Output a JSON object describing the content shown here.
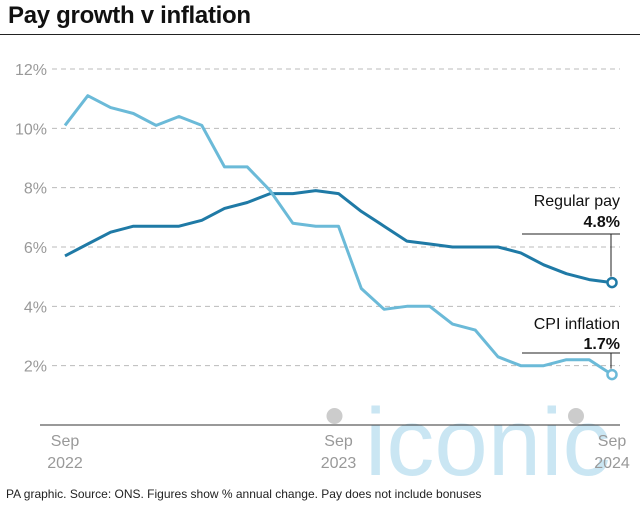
{
  "header": {
    "title": "Pay growth v inflation"
  },
  "footer": {
    "note": "PA graphic. Source: ONS. Figures show % annual change. Pay does not include bonuses"
  },
  "watermark": {
    "text": "iconic"
  },
  "colors": {
    "regular_pay": "#1f7aa6",
    "cpi": "#6bbad8",
    "grid": "#bbbbbb",
    "axis_text": "#999999"
  },
  "chart_data": {
    "type": "line",
    "title": "Pay growth v inflation",
    "xlabel": "",
    "ylabel": "",
    "x_ticks": [
      {
        "month": 0,
        "line1": "Sep",
        "line2": "2022"
      },
      {
        "month": 12,
        "line1": "Sep",
        "line2": "2023"
      },
      {
        "month": 24,
        "line1": "Sep",
        "line2": "2024"
      }
    ],
    "y_ticks": [
      "2%",
      "4%",
      "6%",
      "8%",
      "10%",
      "12%"
    ],
    "y_tick_values": [
      2,
      4,
      6,
      8,
      10,
      12
    ],
    "ylim": [
      0,
      12
    ],
    "xlim": [
      "2022-09",
      "2024-09"
    ],
    "grid": true,
    "x": [
      "2022-09",
      "2022-10",
      "2022-11",
      "2022-12",
      "2023-01",
      "2023-02",
      "2023-03",
      "2023-04",
      "2023-05",
      "2023-06",
      "2023-07",
      "2023-08",
      "2023-09",
      "2023-10",
      "2023-11",
      "2023-12",
      "2024-01",
      "2024-02",
      "2024-03",
      "2024-04",
      "2024-05",
      "2024-06",
      "2024-07",
      "2024-08",
      "2024-09"
    ],
    "series": [
      {
        "name": "Regular pay",
        "label_value": "4.8%",
        "values": [
          5.7,
          6.1,
          6.5,
          6.7,
          6.7,
          6.7,
          6.9,
          7.3,
          7.5,
          7.8,
          7.8,
          7.9,
          7.8,
          7.2,
          6.7,
          6.2,
          6.1,
          6.0,
          6.0,
          6.0,
          5.8,
          5.4,
          5.1,
          4.9,
          4.8
        ]
      },
      {
        "name": "CPI inflation",
        "label_value": "1.7%",
        "values": [
          10.1,
          11.1,
          10.7,
          10.5,
          10.1,
          10.4,
          10.1,
          8.7,
          8.7,
          7.9,
          6.8,
          6.7,
          6.7,
          4.6,
          3.9,
          4.0,
          4.0,
          3.4,
          3.2,
          2.3,
          2.0,
          2.0,
          2.2,
          2.2,
          1.7
        ]
      }
    ]
  }
}
